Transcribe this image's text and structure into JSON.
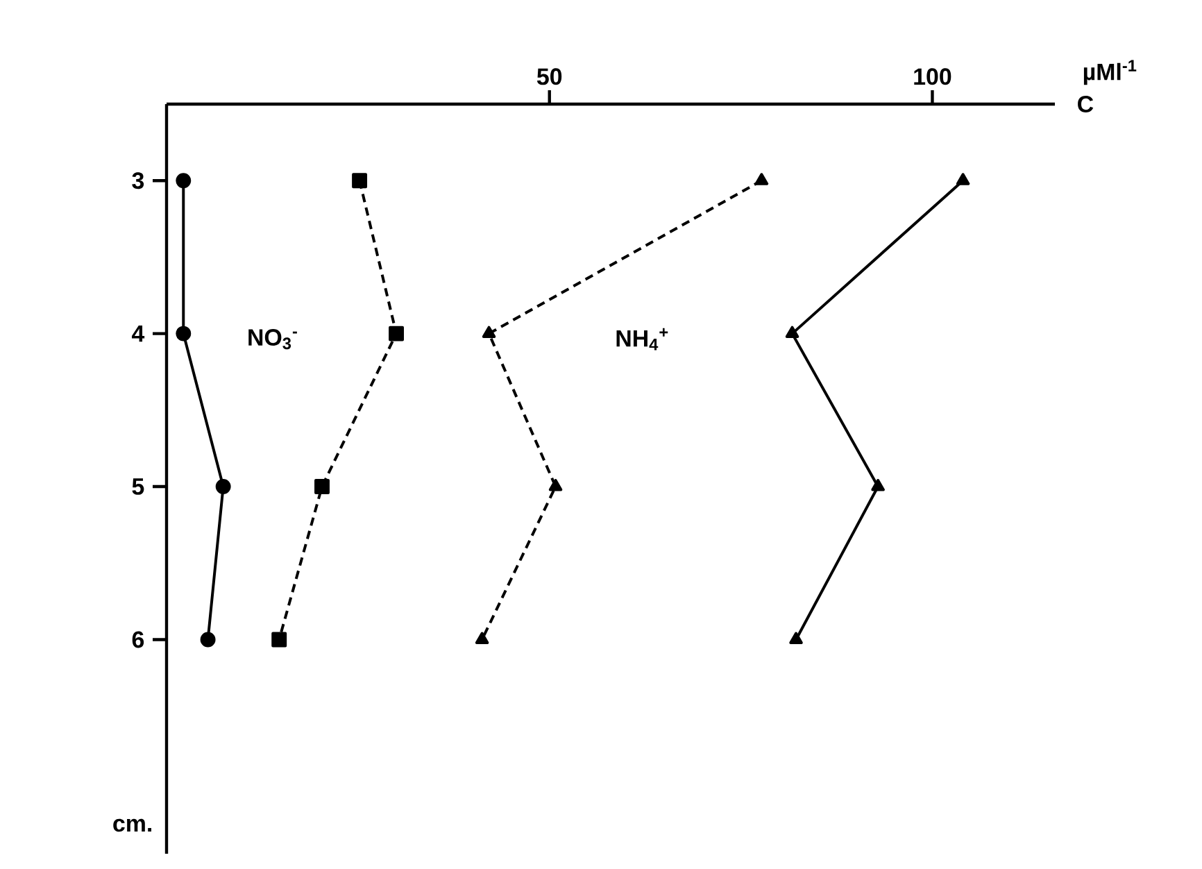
{
  "chart_data": {
    "type": "line",
    "xlabel": "C",
    "ylabel": "cm.",
    "x": [
      3,
      4,
      5,
      6
    ],
    "orientation": "horizontal",
    "series": [
      {
        "name": "NO$_{3}$$^{-}$",
        "color": "#000000",
        "values": [
          2.2,
          2.2,
          7.4,
          5.4
        ],
        "marker": "circle",
        "line_style": "solid"
      },
      {
        "color": "#000000",
        "values": [
          25.2,
          30,
          20.3,
          14.7
        ],
        "marker": "square",
        "line_style": "dashed"
      },
      {
        "name": "NH$_{4}$$^{+}$",
        "color": "#000000",
        "values": [
          77.7,
          42.1,
          50.8,
          41.2
        ],
        "marker": "triangle",
        "line_style": "dashed"
      },
      {
        "color": "#000000",
        "values": [
          104,
          81.7,
          92.9,
          82.2
        ],
        "marker": "triangle",
        "line_style": "solid"
      }
    ],
    "xlim": [
      0,
      116
    ],
    "xticks": [
      50,
      100
    ],
    "ylim": [
      7.4,
      2.5
    ],
    "yticks": [
      3,
      4,
      5,
      6
    ],
    "annotations": [
      "µMl$^{-1}$"
    ],
    "grid": false
  }
}
